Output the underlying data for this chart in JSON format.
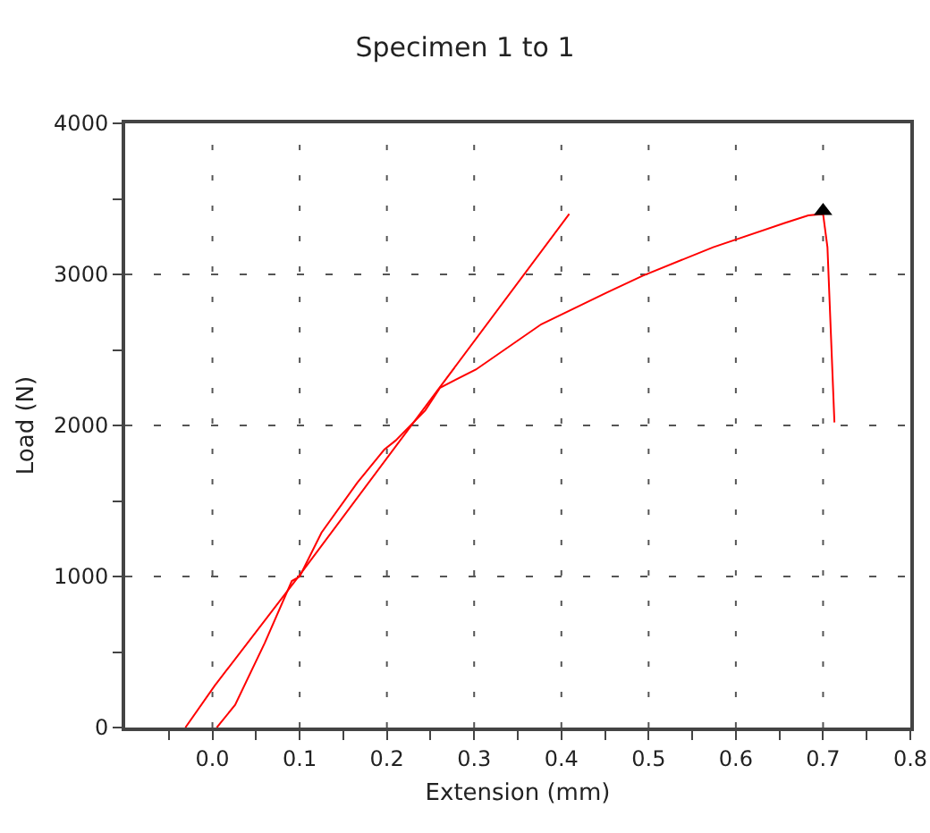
{
  "chart_data": {
    "type": "line",
    "title": "Specimen 1 to 1",
    "xlabel": "Extension (mm)",
    "ylabel": "Load (N)",
    "xlim": [
      -0.1,
      0.8
    ],
    "xticks": [
      {
        "value": -0.05,
        "label": null
      },
      {
        "value": 0,
        "label": "0.0"
      },
      {
        "value": 0.05,
        "label": null
      },
      0.1,
      {
        "value": 0.15,
        "label": null
      },
      0.2,
      {
        "value": 0.25,
        "label": null
      },
      0.3,
      {
        "value": 0.35,
        "label": null
      },
      0.4,
      {
        "value": 0.45,
        "label": null
      },
      0.5,
      {
        "value": 0.55,
        "label": null
      },
      0.6,
      {
        "value": 0.65,
        "label": null
      },
      0.7,
      {
        "value": 0.75,
        "label": null
      },
      0.8
    ],
    "ylim": [
      0,
      4000
    ],
    "yticks": [
      0,
      {
        "value": 500,
        "label": null
      },
      1000,
      {
        "value": 1500,
        "label": null
      },
      2000,
      {
        "value": 2500,
        "label": null
      },
      3000,
      {
        "value": 3500,
        "label": null
      },
      4000
    ],
    "grid": true,
    "line_style": "solid",
    "series": [
      {
        "color": "#ff0000",
        "x": [
          0.005,
          0.026,
          0.06,
          0.091,
          0.1,
          0.125,
          0.166,
          0.197,
          0.21,
          0.244,
          0.261,
          0.302,
          0.377,
          0.452,
          0.493,
          0.574,
          0.656,
          0.683,
          0.7,
          0.705,
          0.713
        ],
        "values": [
          0,
          150,
          560,
          970,
          1000,
          1290,
          1620,
          1840,
          1900,
          2100,
          2250,
          2370,
          2670,
          2880,
          2990,
          3180,
          3340,
          3390,
          3400,
          3180,
          2020
        ]
      },
      {
        "color": "#ff0000",
        "x": [
          -0.031,
          0.003,
          0.1,
          0.409
        ],
        "values": [
          0,
          280,
          1010,
          3400
        ]
      },
      {
        "type": "scatter",
        "color": "#000000",
        "marker": "triangle",
        "x": [
          0.7
        ],
        "values": [
          3420
        ]
      }
    ]
  }
}
